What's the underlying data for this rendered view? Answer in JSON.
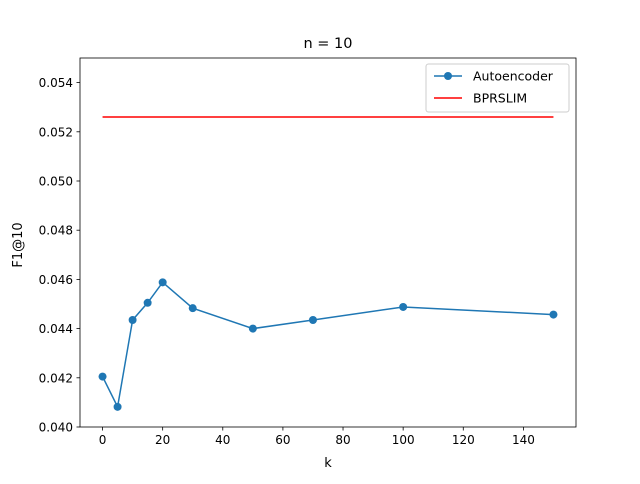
{
  "chart_data": {
    "type": "line",
    "title": "n = 10",
    "xlabel": "k",
    "ylabel": "F1@10",
    "xlim": [
      -7.5,
      157.5
    ],
    "ylim": [
      0.04,
      0.055
    ],
    "xticks": [
      0,
      20,
      40,
      60,
      80,
      100,
      120,
      140
    ],
    "yticks": [
      0.04,
      0.042,
      0.044,
      0.046,
      0.048,
      0.05,
      0.052,
      0.054
    ],
    "ytick_labels": [
      "0.040",
      "0.042",
      "0.044",
      "0.046",
      "0.048",
      "0.050",
      "0.052",
      "0.054"
    ],
    "grid": false,
    "legend_position": "top-right",
    "series": [
      {
        "name": "Autoencoder",
        "color": "#1f77b4",
        "marker": "circle",
        "x": [
          0,
          5,
          10,
          15,
          20,
          30,
          50,
          70,
          100,
          150
        ],
        "y": [
          0.04205,
          0.04082,
          0.04435,
          0.04505,
          0.04588,
          0.04483,
          0.044,
          0.04435,
          0.04488,
          0.04457
        ]
      },
      {
        "name": "BPRSLIM",
        "color": "#ff0000",
        "marker": "none",
        "x": [
          0,
          150
        ],
        "y": [
          0.0526,
          0.0526
        ]
      }
    ]
  }
}
